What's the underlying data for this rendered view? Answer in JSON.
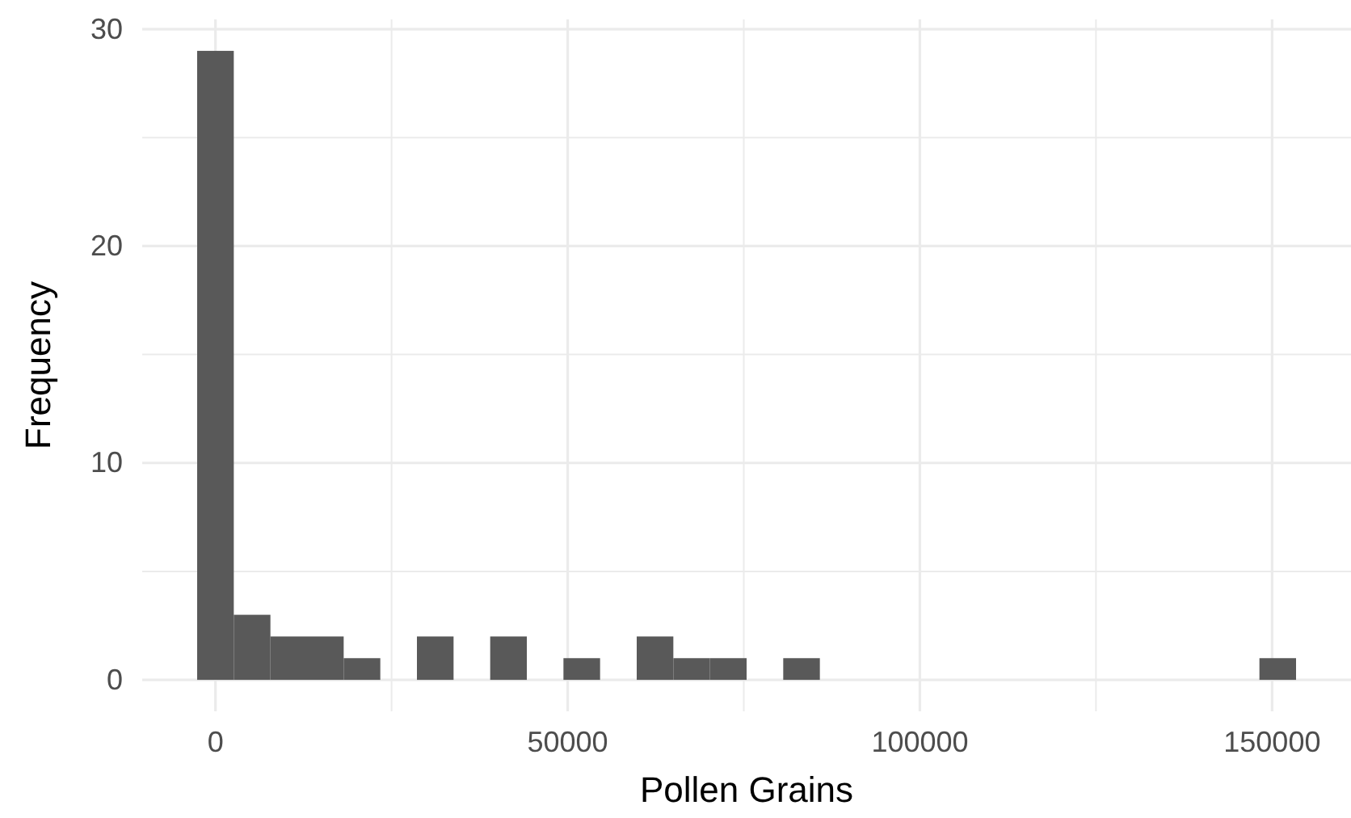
{
  "chart_data": {
    "type": "histogram",
    "xlabel": "Pollen Grains",
    "ylabel": "Frequency",
    "color": "#595959",
    "bins": [
      -2600,
      2600,
      7800,
      13000,
      18200,
      23400,
      28600,
      33800,
      39000,
      44200,
      49400,
      54600,
      59800,
      65000,
      70200,
      75400,
      80600,
      85800,
      91000,
      96200,
      101400,
      106600,
      111800,
      117000,
      122200,
      127400,
      132600,
      137800,
      143000,
      148200,
      153400
    ],
    "values": [
      29,
      3,
      2,
      2,
      1,
      0,
      2,
      0,
      2,
      0,
      1,
      0,
      2,
      1,
      1,
      0,
      1,
      0,
      0,
      0,
      0,
      0,
      0,
      0,
      0,
      0,
      0,
      0,
      0,
      1
    ],
    "xlim": [
      -10400,
      161200
    ],
    "xticks": [
      0,
      {
        "value": 25000,
        "label": null
      },
      50000,
      {
        "value": 75000,
        "label": null
      },
      100000,
      {
        "value": 125000,
        "label": null
      },
      150000
    ],
    "ylim": [
      -1.45,
      30.45
    ],
    "yticks": [
      0,
      {
        "value": 5,
        "label": null
      },
      10,
      {
        "value": 15,
        "label": null
      },
      20,
      {
        "value": 25,
        "label": null
      },
      30
    ],
    "grid": true
  }
}
